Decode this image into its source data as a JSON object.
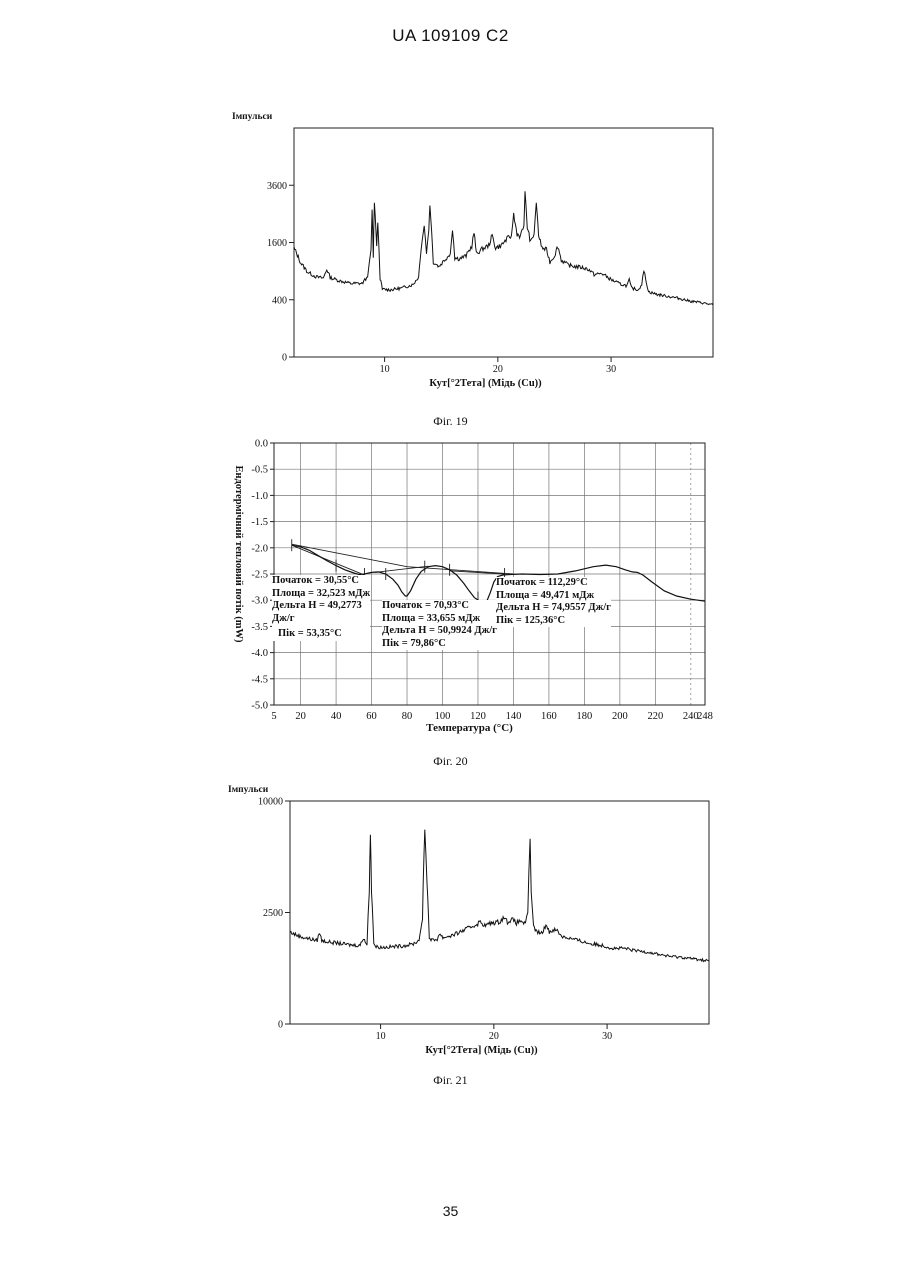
{
  "header": "UA   109109   C2",
  "page_number": "35",
  "chart_data": [
    {
      "id": "fig19",
      "type": "line",
      "caption": "Фіг. 19",
      "ylabel": "Імпульси",
      "xlabel": "Кут[°2Тета] (Мідь (Cu))",
      "y_scale": "sqrt",
      "xlim": [
        2,
        39
      ],
      "ylim": [
        0,
        6400
      ],
      "x_ticks": [
        10,
        20,
        30
      ],
      "y_ticks": [
        0,
        400,
        1600,
        3600
      ],
      "series": [
        {
          "x": [
            2,
            2.6,
            3.2,
            4,
            4.6,
            4.9,
            5.2,
            6,
            7,
            8,
            8.5,
            8.8,
            8.9,
            9.0,
            9.1,
            9.3,
            9.4,
            9.6,
            9.8,
            10.5,
            11.5,
            12.5,
            13.0,
            13.3,
            13.5,
            13.7,
            13.9,
            14.0,
            14.3,
            14.8,
            15.3,
            15.8,
            16.0,
            16.2,
            16.6,
            17.2,
            17.7,
            17.9,
            18.1,
            18.6,
            19.2,
            19.5,
            19.8,
            20.3,
            20.8,
            21.2,
            21.4,
            21.7,
            22.0,
            22.3,
            22.4,
            22.6,
            22.9,
            23.2,
            23.4,
            23.6,
            23.9,
            24.3,
            24.6,
            25.0,
            25.3,
            25.6,
            26.2,
            26.8,
            27.4,
            28.0,
            28.5,
            29.2,
            30.0,
            30.8,
            31.4,
            31.6,
            31.8,
            32.4,
            32.7,
            32.9,
            33.3,
            34.0,
            35.0,
            36.0,
            37.0,
            38.0,
            39.0
          ],
          "y": [
            1450,
            1080,
            880,
            780,
            760,
            940,
            770,
            710,
            660,
            660,
            780,
            1400,
            2650,
            1200,
            2900,
            1500,
            2200,
            760,
            560,
            550,
            580,
            640,
            780,
            1600,
            2100,
            1300,
            1950,
            2800,
            1100,
            1000,
            1150,
            1300,
            1950,
            1200,
            1180,
            1250,
            1500,
            1900,
            1300,
            1420,
            1520,
            1800,
            1450,
            1520,
            1700,
            1800,
            2450,
            1850,
            1780,
            2100,
            3350,
            2050,
            1600,
            1850,
            2900,
            1800,
            1450,
            1400,
            1100,
            1250,
            1500,
            1150,
            1030,
            1000,
            980,
            940,
            830,
            850,
            730,
            650,
            620,
            720,
            580,
            550,
            650,
            900,
            520,
            480,
            450,
            420,
            380,
            360,
            330
          ]
        }
      ]
    },
    {
      "id": "fig20",
      "type": "line",
      "caption": "Фіг. 20",
      "xlabel": "Температура (°C)",
      "ylabel": "Ендотермічний тепловий потік (mW)",
      "xlim": [
        5,
        248
      ],
      "ylim": [
        -5.0,
        0.0
      ],
      "x_ticks": [
        "5",
        "20",
        "40",
        "60",
        "80",
        "100",
        "120",
        "140",
        "160",
        "180",
        "200",
        "220",
        "240",
        "248"
      ],
      "y_ticks": [
        "0.0",
        "-0.5",
        "-1.0",
        "-1.5",
        "-2.0",
        "-2.5",
        "-3.0",
        "-3.5",
        "-4.0",
        "-4.5",
        "-5.0"
      ],
      "grid": true,
      "series": [
        {
          "x": [
            15,
            20,
            25,
            30,
            35,
            40,
            45,
            50,
            53,
            56,
            60,
            64,
            68,
            72,
            75,
            77,
            79,
            80,
            82,
            85,
            88,
            92,
            96,
            100,
            104,
            108,
            112,
            115,
            118,
            121,
            123.5,
            125,
            127,
            129,
            131,
            134,
            138,
            145,
            155,
            165,
            175,
            185,
            192,
            198,
            203,
            207,
            210,
            213,
            218,
            225,
            232,
            240,
            248
          ],
          "y": [
            -1.95,
            -1.98,
            -2.05,
            -2.15,
            -2.25,
            -2.34,
            -2.42,
            -2.48,
            -2.51,
            -2.5,
            -2.47,
            -2.46,
            -2.5,
            -2.6,
            -2.72,
            -2.84,
            -2.92,
            -2.92,
            -2.82,
            -2.6,
            -2.45,
            -2.36,
            -2.34,
            -2.36,
            -2.42,
            -2.52,
            -2.68,
            -2.82,
            -2.95,
            -3.02,
            -3.03,
            -3.02,
            -2.85,
            -2.65,
            -2.55,
            -2.52,
            -2.51,
            -2.5,
            -2.51,
            -2.5,
            -2.44,
            -2.36,
            -2.33,
            -2.36,
            -2.42,
            -2.46,
            -2.47,
            -2.52,
            -2.65,
            -2.82,
            -2.92,
            -2.98,
            -3.02
          ]
        }
      ],
      "annotations": [
        {
          "lines": [
            "Початок = 30,55°C",
            "Площа = 32,523 мДж",
            "Дельта H = 49,2773",
            "Дж/г",
            "Пік = 53,35°C"
          ]
        },
        {
          "lines": [
            "Початок = 70,93°C",
            "Площа = 33,655 мДж",
            "Дельта H = 50,9924 Дж/г",
            "Пік = 79,86°C"
          ]
        },
        {
          "lines": [
            "Початок = 112,29°C",
            "Площа = 49,471 мДж",
            "Дельта H = 74,9557 Дж/г",
            "Пік = 125,36°C"
          ]
        }
      ]
    },
    {
      "id": "fig21",
      "type": "line",
      "caption": "Фіг. 21",
      "ylabel": "Імпульси",
      "xlabel": "Кут[°2Тета] (Мідь (Cu))",
      "y_scale": "sqrt",
      "xlim": [
        2,
        39
      ],
      "ylim": [
        0,
        10000
      ],
      "x_ticks": [
        10,
        20,
        30
      ],
      "y_ticks": [
        0,
        2500,
        10000
      ],
      "series": [
        {
          "x": [
            2,
            2.8,
            3.8,
            4.4,
            4.6,
            4.8,
            5.5,
            6.5,
            7.5,
            8.2,
            8.5,
            8.8,
            9.0,
            9.1,
            9.2,
            9.4,
            9.6,
            10.2,
            11,
            12,
            12.8,
            13.4,
            13.7,
            13.9,
            14.1,
            14.3,
            14.6,
            15.0,
            15.2,
            15.5,
            16.5,
            17.5,
            18.5,
            18.8,
            19.2,
            19.8,
            20.5,
            20.9,
            21.2,
            21.6,
            22.0,
            22.4,
            22.8,
            23.0,
            23.2,
            23.3,
            23.5,
            23.8,
            24.3,
            24.6,
            24.9,
            25.3,
            25.6,
            26.0,
            26.5,
            27.5,
            28.5,
            29.5,
            30.5,
            31.5,
            32.5,
            33.5,
            34.5,
            35.5,
            36.5,
            37.5,
            38.5,
            39.0
          ],
          "y": [
            1700,
            1550,
            1450,
            1400,
            1700,
            1400,
            1350,
            1300,
            1250,
            1250,
            1500,
            1250,
            3500,
            7200,
            3500,
            1300,
            1200,
            1180,
            1200,
            1230,
            1280,
            1400,
            2200,
            7600,
            4000,
            1500,
            1400,
            1450,
            1650,
            1500,
            1600,
            1800,
            2000,
            2100,
            1950,
            2050,
            2100,
            2300,
            2100,
            2200,
            2050,
            2150,
            2000,
            2500,
            6900,
            3500,
            1900,
            1700,
            1650,
            2000,
            1700,
            1800,
            1750,
            1550,
            1500,
            1400,
            1300,
            1250,
            1150,
            1150,
            1080,
            1050,
            980,
            920,
            900,
            860,
            820,
            800
          ]
        }
      ]
    }
  ]
}
